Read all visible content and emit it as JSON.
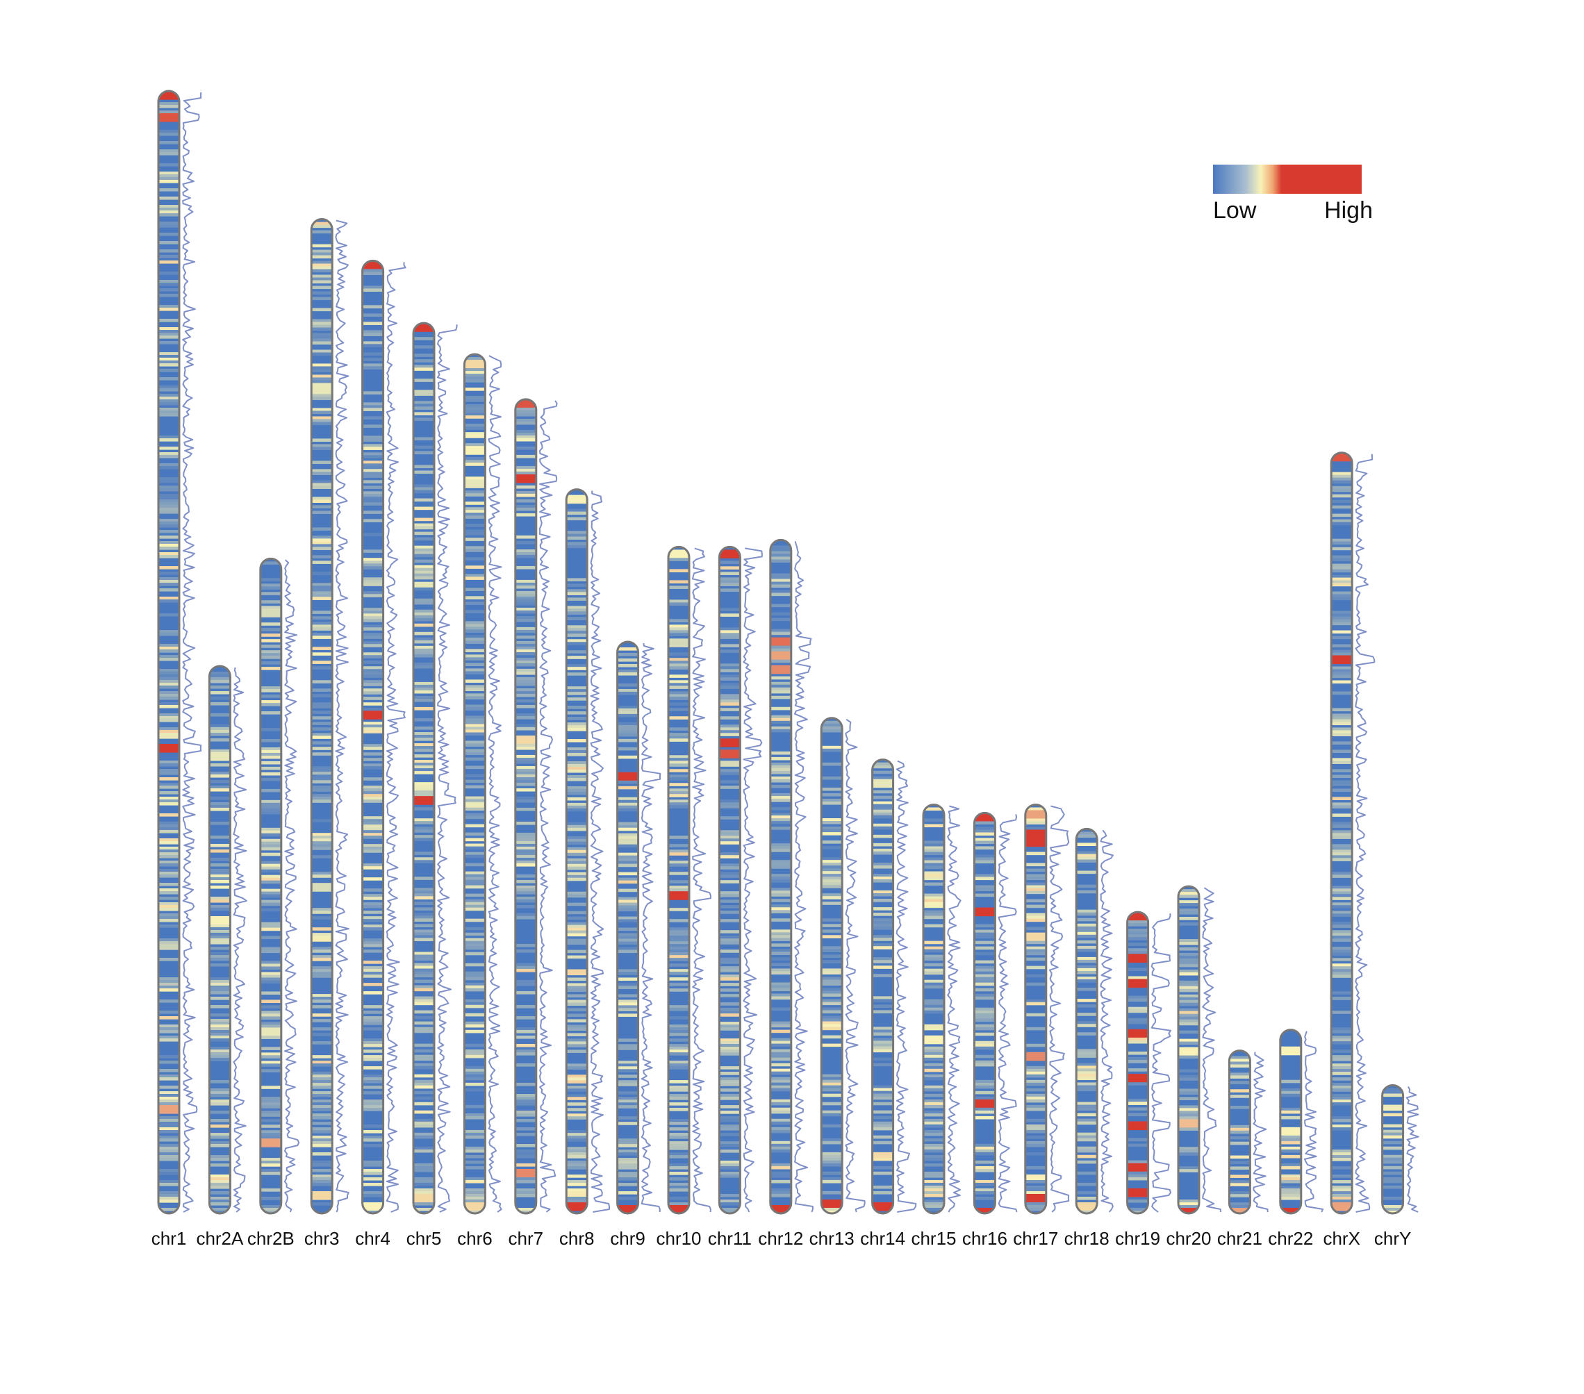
{
  "chart_data": {
    "type": "heatmap",
    "title": "",
    "legend": {
      "placement": "top-right",
      "low_label": "Low",
      "high_label": "High",
      "colors": [
        "#4a78bf",
        "#f8f2b8",
        "#d93a2f"
      ]
    },
    "colors": {
      "low": "#4a78bf",
      "mid": "#f8f2b8",
      "high": "#d93a2f",
      "outline": "#777777",
      "density_line": "#7f8fc7"
    },
    "scale_max_length": 1620,
    "chromosomes": [
      {
        "name": "chr1",
        "length": 1620,
        "seed": 11,
        "hot_spots": [
          [
            0.003,
            0.9
          ],
          [
            0.023,
            0.85
          ],
          [
            0.583,
            0.9
          ],
          [
            0.907,
            0.7
          ]
        ]
      },
      {
        "name": "chr2A",
        "length": 790,
        "seed": 23,
        "hot_spots": [
          [
            0.16,
            0.5
          ],
          [
            0.46,
            0.55
          ],
          [
            0.5,
            0.45
          ]
        ]
      },
      {
        "name": "chr2B",
        "length": 945,
        "seed": 37,
        "hot_spots": [
          [
            0.08,
            0.45
          ],
          [
            0.72,
            0.5
          ],
          [
            0.89,
            0.7
          ]
        ]
      },
      {
        "name": "chr3",
        "length": 1435,
        "seed": 41,
        "hot_spots": [
          [
            0.17,
            0.5
          ],
          [
            0.67,
            0.45
          ],
          [
            0.98,
            0.6
          ]
        ]
      },
      {
        "name": "chr4",
        "length": 1375,
        "seed": 53,
        "hot_spots": [
          [
            0.004,
            0.95
          ],
          [
            0.475,
            0.9
          ],
          [
            0.99,
            0.55
          ]
        ]
      },
      {
        "name": "chr5",
        "length": 1285,
        "seed": 67,
        "hot_spots": [
          [
            0.004,
            0.95
          ],
          [
            0.533,
            0.9
          ],
          [
            0.98,
            0.6
          ]
        ]
      },
      {
        "name": "chr6",
        "length": 1240,
        "seed": 71,
        "hot_spots": [
          [
            0.01,
            0.6
          ],
          [
            0.11,
            0.55
          ],
          [
            0.15,
            0.5
          ],
          [
            0.99,
            0.6
          ]
        ]
      },
      {
        "name": "chr7",
        "length": 1175,
        "seed": 83,
        "hot_spots": [
          [
            0.005,
            0.85
          ],
          [
            0.095,
            0.9
          ],
          [
            0.415,
            0.6
          ],
          [
            0.95,
            0.75
          ]
        ]
      },
      {
        "name": "chr8",
        "length": 1045,
        "seed": 97,
        "hot_spots": [
          [
            0.01,
            0.55
          ],
          [
            0.99,
            0.95
          ]
        ]
      },
      {
        "name": "chr9",
        "length": 825,
        "seed": 101,
        "hot_spots": [
          [
            0.232,
            0.95
          ],
          [
            0.99,
            0.9
          ]
        ]
      },
      {
        "name": "chr10",
        "length": 962,
        "seed": 113,
        "hot_spots": [
          [
            0.01,
            0.55
          ],
          [
            0.52,
            0.9
          ],
          [
            0.99,
            0.9
          ]
        ]
      },
      {
        "name": "chr11",
        "length": 962,
        "seed": 127,
        "hot_spots": [
          [
            0.01,
            0.95
          ],
          [
            0.29,
            0.9
          ],
          [
            0.31,
            0.85
          ]
        ]
      },
      {
        "name": "chr12",
        "length": 972,
        "seed": 131,
        "hot_spots": [
          [
            0.15,
            0.8
          ],
          [
            0.17,
            0.7
          ],
          [
            0.19,
            0.75
          ],
          [
            0.99,
            0.9
          ]
        ]
      },
      {
        "name": "chr13",
        "length": 715,
        "seed": 137,
        "hot_spots": [
          [
            0.98,
            0.95
          ]
        ]
      },
      {
        "name": "chr14",
        "length": 655,
        "seed": 149,
        "hot_spots": [
          [
            0.05,
            0.5
          ],
          [
            0.98,
            0.95
          ]
        ]
      },
      {
        "name": "chr15",
        "length": 590,
        "seed": 151,
        "hot_spots": [
          [
            0.17,
            0.5
          ],
          [
            0.57,
            0.55
          ]
        ]
      },
      {
        "name": "chr16",
        "length": 578,
        "seed": 163,
        "hot_spots": [
          [
            0.01,
            0.95
          ],
          [
            0.24,
            0.9
          ],
          [
            0.72,
            0.9
          ],
          [
            0.99,
            0.95
          ]
        ]
      },
      {
        "name": "chr17",
        "length": 590,
        "seed": 173,
        "hot_spots": [
          [
            0.02,
            0.7
          ],
          [
            0.07,
            0.9
          ],
          [
            0.09,
            0.95
          ],
          [
            0.32,
            0.6
          ],
          [
            0.61,
            0.75
          ],
          [
            0.96,
            0.95
          ]
        ]
      },
      {
        "name": "chr18",
        "length": 555,
        "seed": 181,
        "hot_spots": [
          [
            0.98,
            0.6
          ]
        ]
      },
      {
        "name": "chr19",
        "length": 435,
        "seed": 191,
        "hot_spots": [
          [
            0.01,
            0.95
          ],
          [
            0.15,
            0.9
          ],
          [
            0.23,
            0.9
          ],
          [
            0.4,
            0.95
          ],
          [
            0.55,
            0.9
          ],
          [
            0.7,
            0.9
          ],
          [
            0.84,
            0.9
          ],
          [
            0.93,
            0.95
          ]
        ]
      },
      {
        "name": "chr20",
        "length": 472,
        "seed": 193,
        "hot_spots": [
          [
            0.5,
            0.55
          ],
          [
            0.72,
            0.65
          ],
          [
            0.99,
            0.95
          ]
        ]
      },
      {
        "name": "chr21",
        "length": 235,
        "seed": 197,
        "hot_spots": [
          [
            0.98,
            0.7
          ]
        ]
      },
      {
        "name": "chr22",
        "length": 265,
        "seed": 199,
        "hot_spots": [
          [
            0.1,
            0.55
          ],
          [
            0.55,
            0.55
          ],
          [
            0.98,
            0.9
          ]
        ]
      },
      {
        "name": "chrX",
        "length": 1098,
        "seed": 211,
        "hot_spots": [
          [
            0.004,
            0.85
          ],
          [
            0.27,
            0.95
          ],
          [
            0.99,
            0.7
          ]
        ]
      },
      {
        "name": "chrY",
        "length": 185,
        "seed": 223,
        "hot_spots": []
      }
    ]
  }
}
